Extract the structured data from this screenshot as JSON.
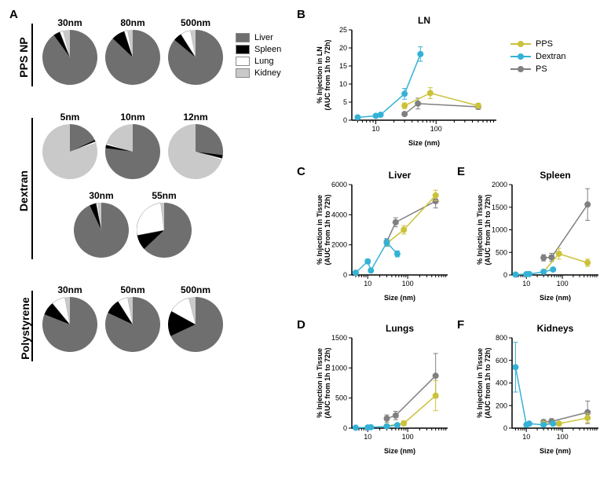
{
  "colors": {
    "liver": "#6f6f6f",
    "spleen": "#000000",
    "lung": "#ffffff",
    "kidney": "#c9c9c9",
    "pps": "#cbc23a",
    "dextran": "#34b2d6",
    "ps": "#808080",
    "axis": "#000000",
    "lung_border": "#888888"
  },
  "panel_labels": {
    "A": "A",
    "B": "B",
    "C": "C",
    "D": "D",
    "E": "E",
    "F": "F"
  },
  "rowA": {
    "pps": {
      "label": "PPS NP",
      "pies": [
        {
          "title": "30nm",
          "slices": {
            "liver": 0.9,
            "spleen": 0.04,
            "lung": 0.02,
            "kidney": 0.04
          }
        },
        {
          "title": "80nm",
          "slices": {
            "liver": 0.87,
            "spleen": 0.08,
            "lung": 0.02,
            "kidney": 0.03
          }
        },
        {
          "title": "500nm",
          "slices": {
            "liver": 0.86,
            "spleen": 0.05,
            "lung": 0.06,
            "kidney": 0.03
          }
        }
      ]
    },
    "dextran": {
      "label": "Dextran",
      "pies": [
        {
          "title": "5nm",
          "slices": {
            "liver": 0.18,
            "spleen": 0.01,
            "lung": 0.01,
            "kidney": 0.8
          }
        },
        {
          "title": "10nm",
          "slices": {
            "liver": 0.77,
            "spleen": 0.02,
            "lung": 0.01,
            "kidney": 0.2
          }
        },
        {
          "title": "12nm",
          "slices": {
            "liver": 0.27,
            "spleen": 0.02,
            "lung": 0.01,
            "kidney": 0.7
          }
        },
        {
          "title": "30nm",
          "slices": {
            "liver": 0.93,
            "spleen": 0.04,
            "lung": 0.01,
            "kidney": 0.02
          }
        },
        {
          "title": "55nm",
          "slices": {
            "liver": 0.63,
            "spleen": 0.09,
            "lung": 0.26,
            "kidney": 0.02
          }
        }
      ]
    },
    "polystyrene": {
      "label": "Polystyrene",
      "pies": [
        {
          "title": "30nm",
          "slices": {
            "liver": 0.81,
            "spleen": 0.08,
            "lung": 0.08,
            "kidney": 0.03
          }
        },
        {
          "title": "50nm",
          "slices": {
            "liver": 0.82,
            "spleen": 0.09,
            "lung": 0.06,
            "kidney": 0.03
          }
        },
        {
          "title": "500nm",
          "slices": {
            "liver": 0.68,
            "spleen": 0.15,
            "lung": 0.13,
            "kidney": 0.04
          }
        }
      ]
    },
    "legend": [
      "Liver",
      "Spleen",
      "Lung",
      "Kidney"
    ]
  },
  "legend_b": {
    "pps": "PPS",
    "dextran": "Dextran",
    "ps": "PS"
  },
  "charts": {
    "B": {
      "title": "LN",
      "xlabel": "Size (nm)",
      "ylabel": "% Injection in LN\n(AUC from 1h to 72h)",
      "xlog": true,
      "xlim": [
        4,
        1000
      ],
      "xticks": [
        10,
        100
      ],
      "ylim": [
        0,
        25
      ],
      "yticks": [
        0,
        5,
        10,
        15,
        20,
        25
      ],
      "series": {
        "dextran": [
          {
            "x": 5,
            "y": 0.8,
            "e": 0.3
          },
          {
            "x": 10,
            "y": 1.2,
            "e": 0.4
          },
          {
            "x": 12,
            "y": 1.5,
            "e": 0.5
          },
          {
            "x": 30,
            "y": 7.3,
            "e": 1.5
          },
          {
            "x": 55,
            "y": 18.3,
            "e": 2.0
          }
        ],
        "pps": [
          {
            "x": 30,
            "y": 4.0,
            "e": 0.8
          },
          {
            "x": 80,
            "y": 7.5,
            "e": 1.5
          },
          {
            "x": 500,
            "y": 4.0,
            "e": 0.7
          }
        ],
        "ps": [
          {
            "x": 30,
            "y": 1.7,
            "e": 0.4
          },
          {
            "x": 50,
            "y": 4.6,
            "e": 1.5
          },
          {
            "x": 500,
            "y": 3.7,
            "e": 0.7
          }
        ]
      }
    },
    "C": {
      "title": "Liver",
      "xlabel": "Size (nm)",
      "ylabel": "% Injection in Tissue\n(AUC from 1h to 72h)",
      "xlog": true,
      "xlim": [
        4,
        1000
      ],
      "xticks": [
        10,
        100
      ],
      "ylim": [
        0,
        6000
      ],
      "yticks": [
        0,
        2000,
        4000,
        6000
      ],
      "series": {
        "dextran": [
          {
            "x": 5,
            "y": 150,
            "e": 60
          },
          {
            "x": 10,
            "y": 900,
            "e": 150
          },
          {
            "x": 12,
            "y": 300,
            "e": 80
          },
          {
            "x": 30,
            "y": 2150,
            "e": 250
          },
          {
            "x": 55,
            "y": 1400,
            "e": 200
          }
        ],
        "pps": [
          {
            "x": 30,
            "y": 2100,
            "e": 200
          },
          {
            "x": 80,
            "y": 3000,
            "e": 280
          },
          {
            "x": 500,
            "y": 5280,
            "e": 350
          }
        ],
        "ps": [
          {
            "x": 30,
            "y": 2200,
            "e": 220
          },
          {
            "x": 50,
            "y": 3500,
            "e": 300
          },
          {
            "x": 500,
            "y": 4900,
            "e": 450
          }
        ]
      }
    },
    "D": {
      "title": "Lungs",
      "xlabel": "Size (nm)",
      "ylabel": "% Injection in Tissue\n(AUC from 1h to 72h)",
      "xlog": true,
      "xlim": [
        4,
        1000
      ],
      "xticks": [
        10,
        100
      ],
      "ylim": [
        0,
        1500
      ],
      "yticks": [
        0,
        500,
        1000,
        1500
      ],
      "series": {
        "dextran": [
          {
            "x": 5,
            "y": 8,
            "e": 6
          },
          {
            "x": 10,
            "y": 12,
            "e": 8
          },
          {
            "x": 12,
            "y": 15,
            "e": 8
          },
          {
            "x": 30,
            "y": 30,
            "e": 15
          },
          {
            "x": 55,
            "y": 50,
            "e": 30
          }
        ],
        "pps": [
          {
            "x": 30,
            "y": 35,
            "e": 15
          },
          {
            "x": 80,
            "y": 80,
            "e": 40
          },
          {
            "x": 500,
            "y": 540,
            "e": 250
          }
        ],
        "ps": [
          {
            "x": 30,
            "y": 160,
            "e": 60
          },
          {
            "x": 50,
            "y": 210,
            "e": 70
          },
          {
            "x": 500,
            "y": 870,
            "e": 370
          }
        ]
      }
    },
    "E": {
      "title": "Spleen",
      "xlabel": "Size (nm)",
      "ylabel": "% Injection in Tissue\n(AUC from 1h to 72h)",
      "xlog": true,
      "xlim": [
        4,
        1000
      ],
      "xticks": [
        10,
        100
      ],
      "ylim": [
        0,
        2000
      ],
      "yticks": [
        0,
        500,
        1000,
        1500,
        2000
      ],
      "series": {
        "dextran": [
          {
            "x": 5,
            "y": 8,
            "e": 6
          },
          {
            "x": 10,
            "y": 18,
            "e": 10
          },
          {
            "x": 12,
            "y": 20,
            "e": 10
          },
          {
            "x": 30,
            "y": 70,
            "e": 25
          },
          {
            "x": 55,
            "y": 120,
            "e": 40
          }
        ],
        "pps": [
          {
            "x": 30,
            "y": 70,
            "e": 30
          },
          {
            "x": 80,
            "y": 470,
            "e": 120
          },
          {
            "x": 500,
            "y": 270,
            "e": 80
          }
        ],
        "ps": [
          {
            "x": 30,
            "y": 380,
            "e": 70
          },
          {
            "x": 50,
            "y": 390,
            "e": 90
          },
          {
            "x": 500,
            "y": 1560,
            "e": 350
          }
        ]
      }
    },
    "F": {
      "title": "Kidneys",
      "xlabel": "Size (nm)",
      "ylabel": "% Injection in Tissue\n(AUC from 1h to 72h)",
      "xlog": true,
      "xlim": [
        4,
        1000
      ],
      "xticks": [
        10,
        100
      ],
      "ylim": [
        0,
        800
      ],
      "yticks": [
        0,
        200,
        400,
        600,
        800
      ],
      "series": {
        "dextran": [
          {
            "x": 5,
            "y": 540,
            "e": 220
          },
          {
            "x": 10,
            "y": 30,
            "e": 15
          },
          {
            "x": 12,
            "y": 40,
            "e": 15
          },
          {
            "x": 30,
            "y": 30,
            "e": 15
          },
          {
            "x": 55,
            "y": 40,
            "e": 18
          }
        ],
        "pps": [
          {
            "x": 30,
            "y": 40,
            "e": 18
          },
          {
            "x": 80,
            "y": 40,
            "e": 18
          },
          {
            "x": 500,
            "y": 90,
            "e": 40
          }
        ],
        "ps": [
          {
            "x": 30,
            "y": 55,
            "e": 20
          },
          {
            "x": 50,
            "y": 60,
            "e": 25
          },
          {
            "x": 500,
            "y": 140,
            "e": 100
          }
        ]
      }
    }
  },
  "chart_layout": {
    "label_fontsize": 9,
    "tick_fontsize": 9,
    "title_fontsize": 12,
    "marker_r": 4,
    "line_w": 1.5
  }
}
